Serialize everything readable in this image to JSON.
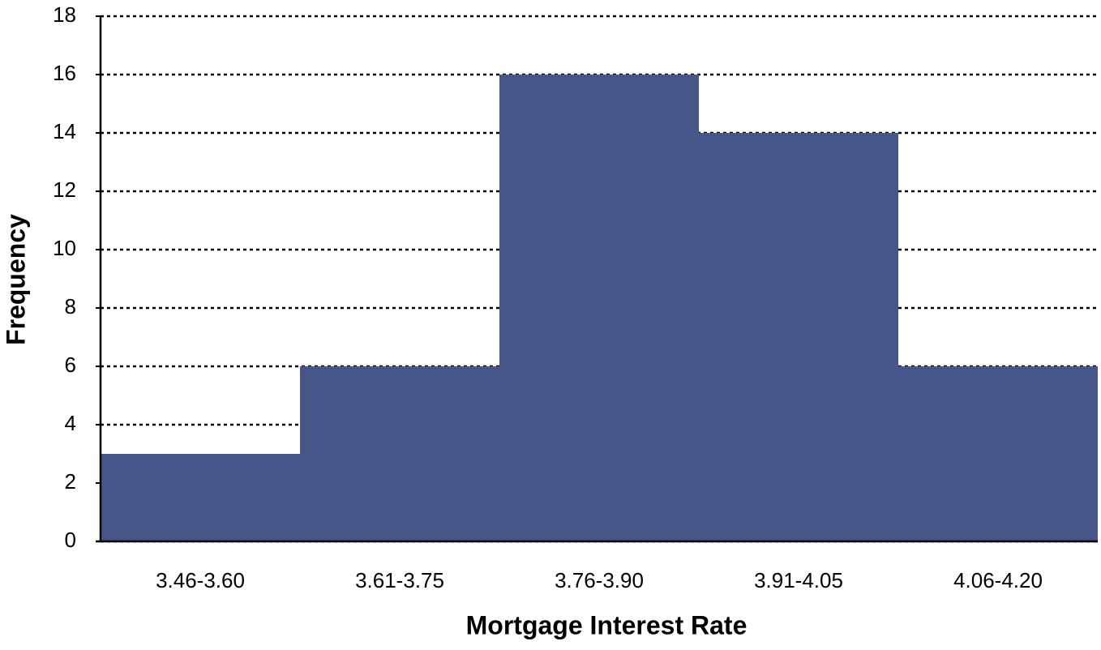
{
  "chart_data": {
    "type": "bar",
    "x_label": "Mortgage Interest Rate",
    "y_label": "Frequency",
    "categories": [
      "3.46-3.60",
      "3.61-3.75",
      "3.76-3.90",
      "3.91-4.05",
      "4.06-4.20"
    ],
    "values": [
      3,
      6,
      16,
      14,
      6
    ],
    "color": "#465689",
    "ylim": [
      0,
      18
    ],
    "yticks": [
      0,
      2,
      4,
      6,
      8,
      10,
      12,
      14,
      16,
      18
    ],
    "grid": true
  }
}
